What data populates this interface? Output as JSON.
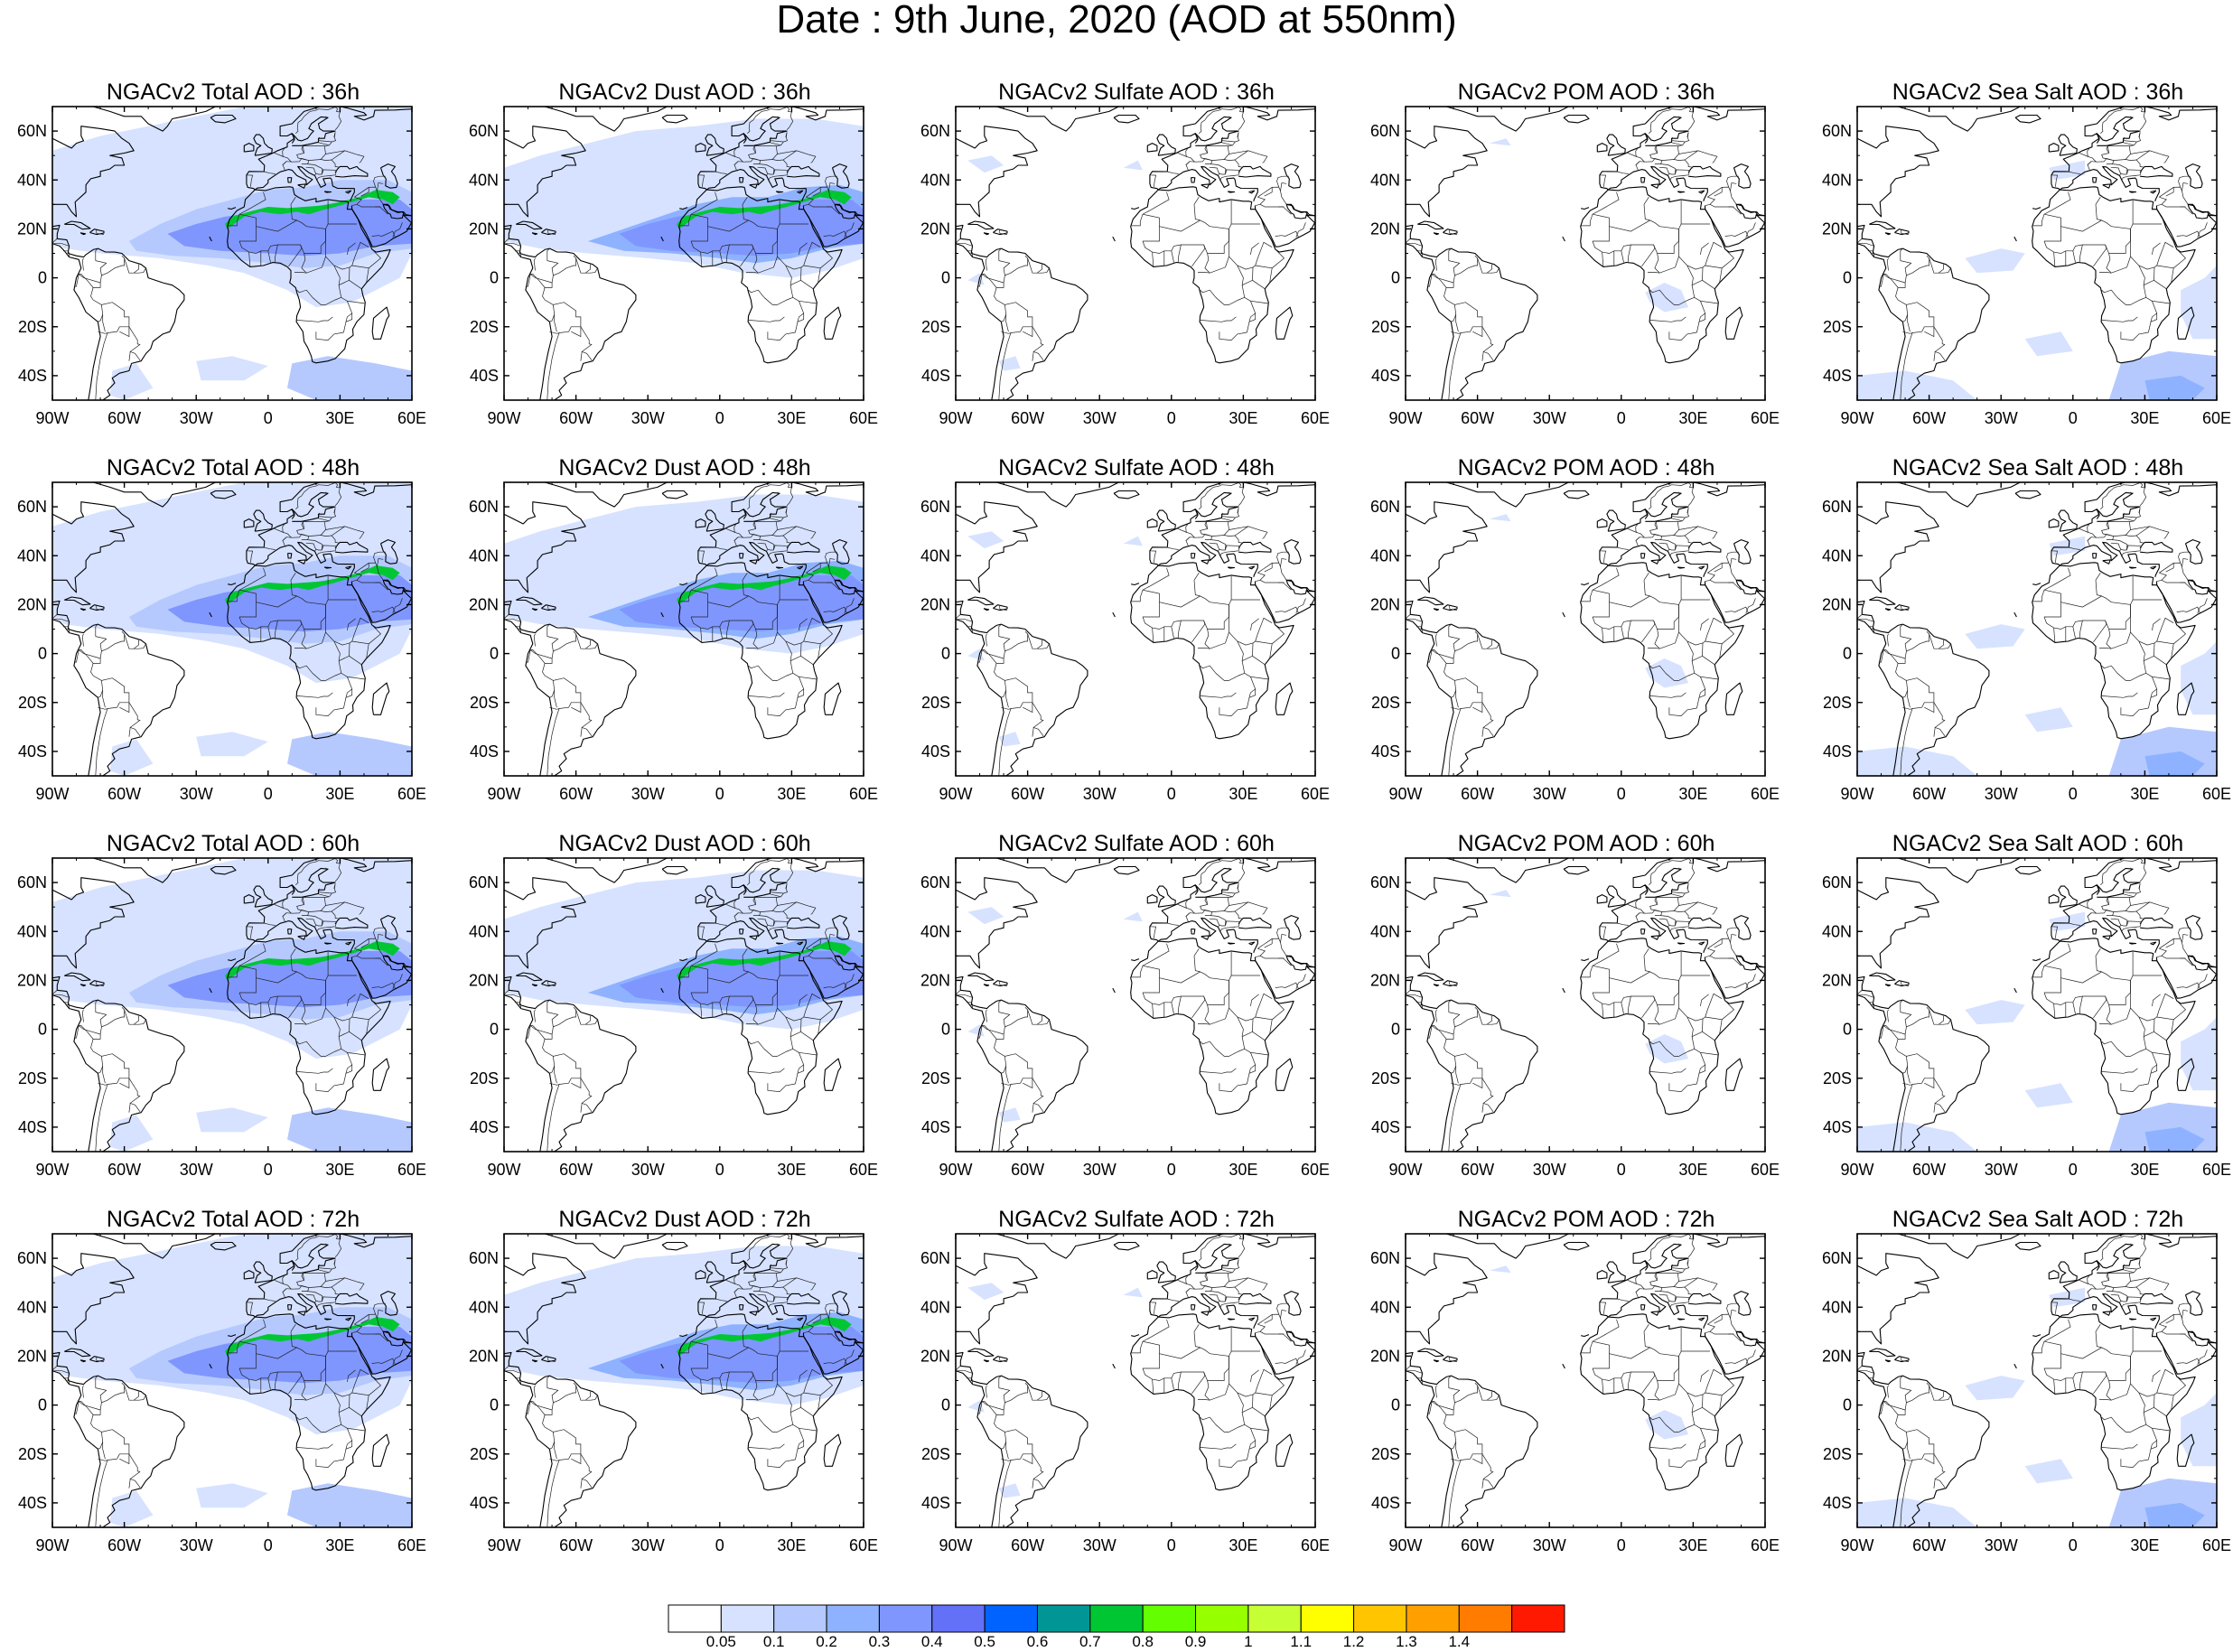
{
  "title": "Date : 9th June, 2020 (AOD at 550nm)",
  "species": [
    "Total",
    "Dust",
    "Sulfate",
    "POM",
    "Sea Salt"
  ],
  "forecast_hours": [
    "36h",
    "48h",
    "60h",
    "72h"
  ],
  "panel_titles": [
    [
      "NGACv2 Total AOD : 36h",
      "NGACv2 Dust AOD : 36h",
      "NGACv2 Sulfate AOD : 36h",
      "NGACv2 POM AOD : 36h",
      "NGACv2 Sea Salt AOD : 36h"
    ],
    [
      "NGACv2 Total AOD : 48h",
      "NGACv2 Dust AOD : 48h",
      "NGACv2 Sulfate AOD : 48h",
      "NGACv2 POM AOD : 48h",
      "NGACv2 Sea Salt AOD : 48h"
    ],
    [
      "NGACv2 Total AOD : 60h",
      "NGACv2 Dust AOD : 60h",
      "NGACv2 Sulfate AOD : 60h",
      "NGACv2 POM AOD : 60h",
      "NGACv2 Sea Salt AOD : 60h"
    ],
    [
      "NGACv2 Total AOD : 72h",
      "NGACv2 Dust AOD : 72h",
      "NGACv2 Sulfate AOD : 72h",
      "NGACv2 POM AOD : 72h",
      "NGACv2 Sea Salt  AOD : 72h"
    ]
  ],
  "map_extent": {
    "lon": [
      -90,
      60
    ],
    "lat": [
      -50,
      70
    ]
  },
  "lon_ticks": [
    {
      "value": -90,
      "label": "90W"
    },
    {
      "value": -60,
      "label": "60W"
    },
    {
      "value": -30,
      "label": "30W"
    },
    {
      "value": 0,
      "label": "0"
    },
    {
      "value": 30,
      "label": "30E"
    },
    {
      "value": 60,
      "label": "60E"
    }
  ],
  "lat_ticks": [
    {
      "value": 60,
      "label": "60N"
    },
    {
      "value": 40,
      "label": "40N"
    },
    {
      "value": 20,
      "label": "20N"
    },
    {
      "value": 0,
      "label": "0"
    },
    {
      "value": -20,
      "label": "20S"
    },
    {
      "value": -40,
      "label": "40S"
    }
  ],
  "colorbar": {
    "colors": [
      "#ffffff",
      "#d6e2ff",
      "#b5c9ff",
      "#8eb2ff",
      "#7f96ff",
      "#6370f8",
      "#0063ff",
      "#009696",
      "#00c633",
      "#63ff00",
      "#96ff00",
      "#c6ff33",
      "#ffff00",
      "#ffc600",
      "#ffa000",
      "#ff7c00",
      "#ff1900"
    ],
    "labels": [
      "0.05",
      "0.1",
      "0.2",
      "0.3",
      "0.4",
      "0.5",
      "0.6",
      "0.7",
      "0.8",
      "0.9",
      "1",
      "1.1",
      "1.2",
      "1.3",
      "1.4"
    ]
  }
}
